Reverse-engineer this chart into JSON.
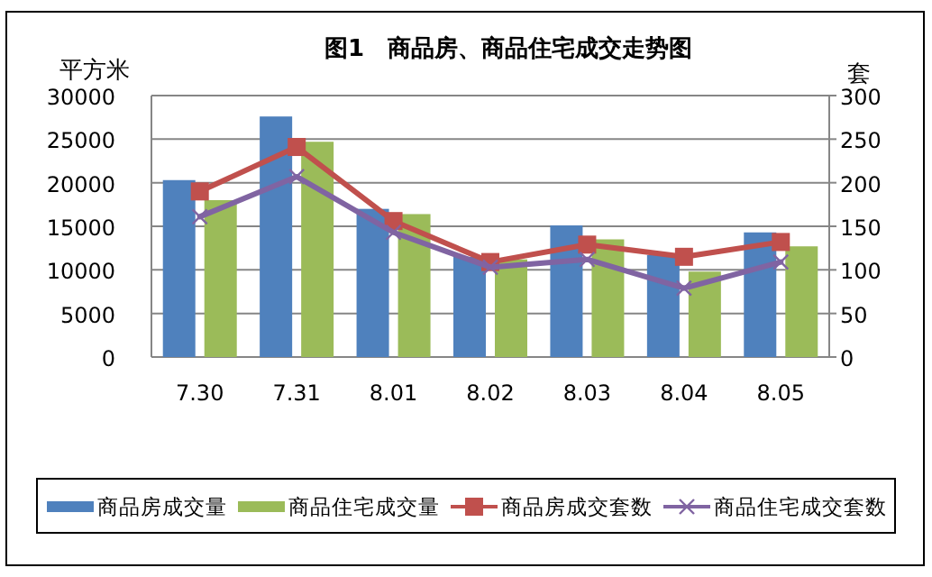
{
  "chart_data": {
    "type": "bar",
    "title": "图1　商品房、商品住宅成交走势图",
    "ylabel": "平方米",
    "y2label": "套",
    "categories": [
      "7.30",
      "7.31",
      "8.01",
      "8.02",
      "8.03",
      "8.04",
      "8.05"
    ],
    "series": [
      {
        "name": "商品房成交量",
        "color": "#4f81bd",
        "values": [
          20300,
          27600,
          17000,
          11500,
          15100,
          11700,
          14300
        ]
      },
      {
        "name": "商品住宅成交量",
        "color": "#9bbb59",
        "values": [
          18000,
          24700,
          16400,
          11200,
          13500,
          9800,
          12700
        ]
      },
      {
        "name": "商品房成交套数",
        "type": "line",
        "axis": "y2",
        "marker": "square",
        "color": "#c0504d",
        "values": [
          190,
          241,
          156,
          109,
          129,
          115,
          132
        ]
      },
      {
        "name": "商品住宅成交套数",
        "type": "line",
        "axis": "y2",
        "marker": "cross",
        "color": "#8064a2",
        "values": [
          161,
          207,
          143,
          103,
          112,
          79,
          109
        ]
      }
    ],
    "ylim": [
      0,
      30000
    ],
    "yticks": [
      0,
      5000,
      10000,
      15000,
      20000,
      25000,
      30000
    ],
    "y2lim": [
      0,
      300
    ],
    "y2ticks": [
      0,
      50,
      100,
      150,
      200,
      250,
      300
    ],
    "grid": "y",
    "legend": "bottom"
  }
}
